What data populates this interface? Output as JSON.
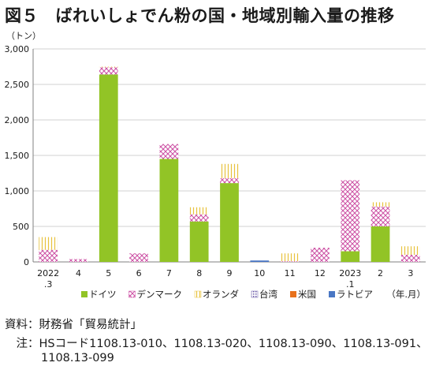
{
  "header": {
    "title": "図５　ばれいしょでん粉の国・地域別輸入量の推移"
  },
  "chart_data": {
    "type": "bar",
    "stacked": true,
    "y_unit_label": "（トン）",
    "x_unit_label": "（年.月）",
    "ylim": [
      0,
      3000
    ],
    "yticks": [
      "0",
      "500",
      "1,000",
      "1,500",
      "2,000",
      "2,500",
      "3,000"
    ],
    "ytick_values": [
      0,
      500,
      1000,
      1500,
      2000,
      2500,
      3000
    ],
    "grid": true,
    "legend_position": "bottom",
    "categories": [
      [
        "2022",
        ".3"
      ],
      [
        "4"
      ],
      [
        "5"
      ],
      [
        "6"
      ],
      [
        "7"
      ],
      [
        "8"
      ],
      [
        "9"
      ],
      [
        "10"
      ],
      [
        "11"
      ],
      [
        "12"
      ],
      [
        "2023",
        ".1"
      ],
      [
        "2"
      ],
      [
        "3"
      ]
    ],
    "series": [
      {
        "name": "ドイツ",
        "color": "#92c426",
        "pattern": "solid",
        "values": [
          0,
          0,
          2640,
          0,
          1450,
          570,
          1110,
          0,
          0,
          0,
          150,
          500,
          0
        ]
      },
      {
        "name": "デンマーク",
        "color": "#cc4fa3",
        "pattern": "cross",
        "values": [
          170,
          40,
          100,
          120,
          210,
          100,
          70,
          0,
          10,
          200,
          1000,
          280,
          100
        ]
      },
      {
        "name": "オランダ",
        "color": "#e8c23c",
        "pattern": "vline",
        "values": [
          180,
          0,
          10,
          0,
          0,
          100,
          200,
          0,
          110,
          0,
          0,
          60,
          120
        ]
      },
      {
        "name": "台湾",
        "color": "#6a5aa8",
        "pattern": "dot",
        "values": [
          0,
          0,
          0,
          0,
          0,
          0,
          0,
          0,
          0,
          0,
          0,
          0,
          0
        ]
      },
      {
        "name": "米国",
        "color": "#e8711c",
        "pattern": "solid",
        "values": [
          0,
          0,
          0,
          0,
          0,
          0,
          0,
          0,
          0,
          0,
          0,
          0,
          0
        ]
      },
      {
        "name": "ラトビア",
        "color": "#4a77c4",
        "pattern": "solid",
        "values": [
          0,
          0,
          0,
          0,
          0,
          0,
          0,
          20,
          0,
          0,
          0,
          0,
          0
        ]
      }
    ]
  },
  "footer": {
    "source": "資料：財務省「貿易統計」",
    "note_line1": "　注：HSコード1108.13-010、1108.13-020、1108.13-090、1108.13-091、",
    "note_line2": "1108.13-099"
  }
}
